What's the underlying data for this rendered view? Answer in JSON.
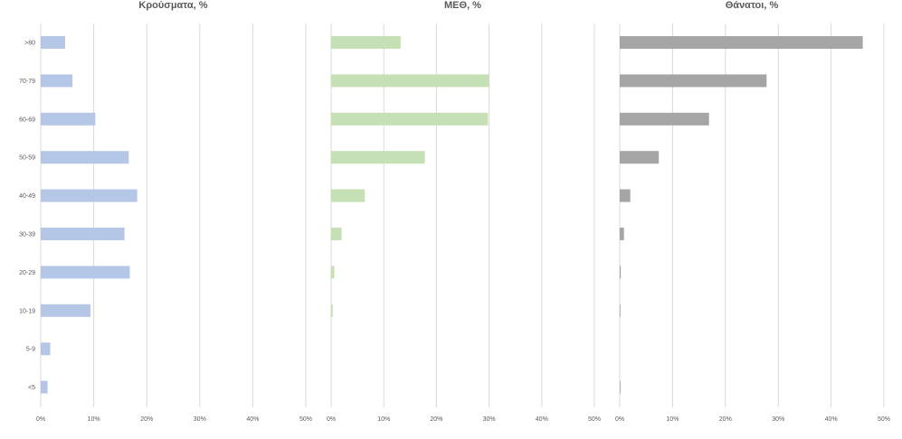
{
  "chart_data": [
    {
      "type": "bar",
      "orientation": "horizontal",
      "title": "Κρούσματα, %",
      "categories": [
        ">80",
        "70-79",
        "60-69",
        "50-59",
        "40-49",
        "30-39",
        "20-29",
        "10-19",
        "5-9",
        "<5"
      ],
      "values": [
        4.6,
        6.0,
        10.3,
        16.6,
        18.2,
        15.8,
        16.8,
        9.4,
        1.8,
        1.3
      ],
      "xlim": [
        0,
        50
      ],
      "xticks": [
        "0%",
        "10%",
        "20%",
        "30%",
        "40%",
        "50%"
      ],
      "grid": true,
      "color": "#b4c7e7"
    },
    {
      "type": "bar",
      "orientation": "horizontal",
      "title": "ΜΕΘ, %",
      "categories": [
        ">80",
        "70-79",
        "60-69",
        "50-59",
        "40-49",
        "30-39",
        "20-29",
        "10-19",
        "5-9",
        "<5"
      ],
      "values": [
        13.2,
        30.0,
        29.8,
        17.8,
        6.4,
        2.0,
        0.6,
        0.3,
        0,
        0
      ],
      "xlim": [
        0,
        50
      ],
      "xticks": [
        "0%",
        "10%",
        "20%",
        "30%",
        "40%",
        "50%"
      ],
      "grid": true,
      "color": "#c5e0b4"
    },
    {
      "type": "bar",
      "orientation": "horizontal",
      "title": "Θάνατοι, %",
      "categories": [
        ">80",
        "70-79",
        "60-69",
        "50-59",
        "40-49",
        "30-39",
        "20-29",
        "10-19",
        "5-9",
        "<5"
      ],
      "values": [
        46.0,
        27.8,
        16.9,
        7.4,
        2.0,
        0.8,
        0.2,
        0.1,
        0,
        0.1
      ],
      "xlim": [
        0,
        50
      ],
      "xticks": [
        "0%",
        "10%",
        "20%",
        "30%",
        "40%",
        "50%"
      ],
      "grid": true,
      "color": "#a5a5a5"
    }
  ]
}
